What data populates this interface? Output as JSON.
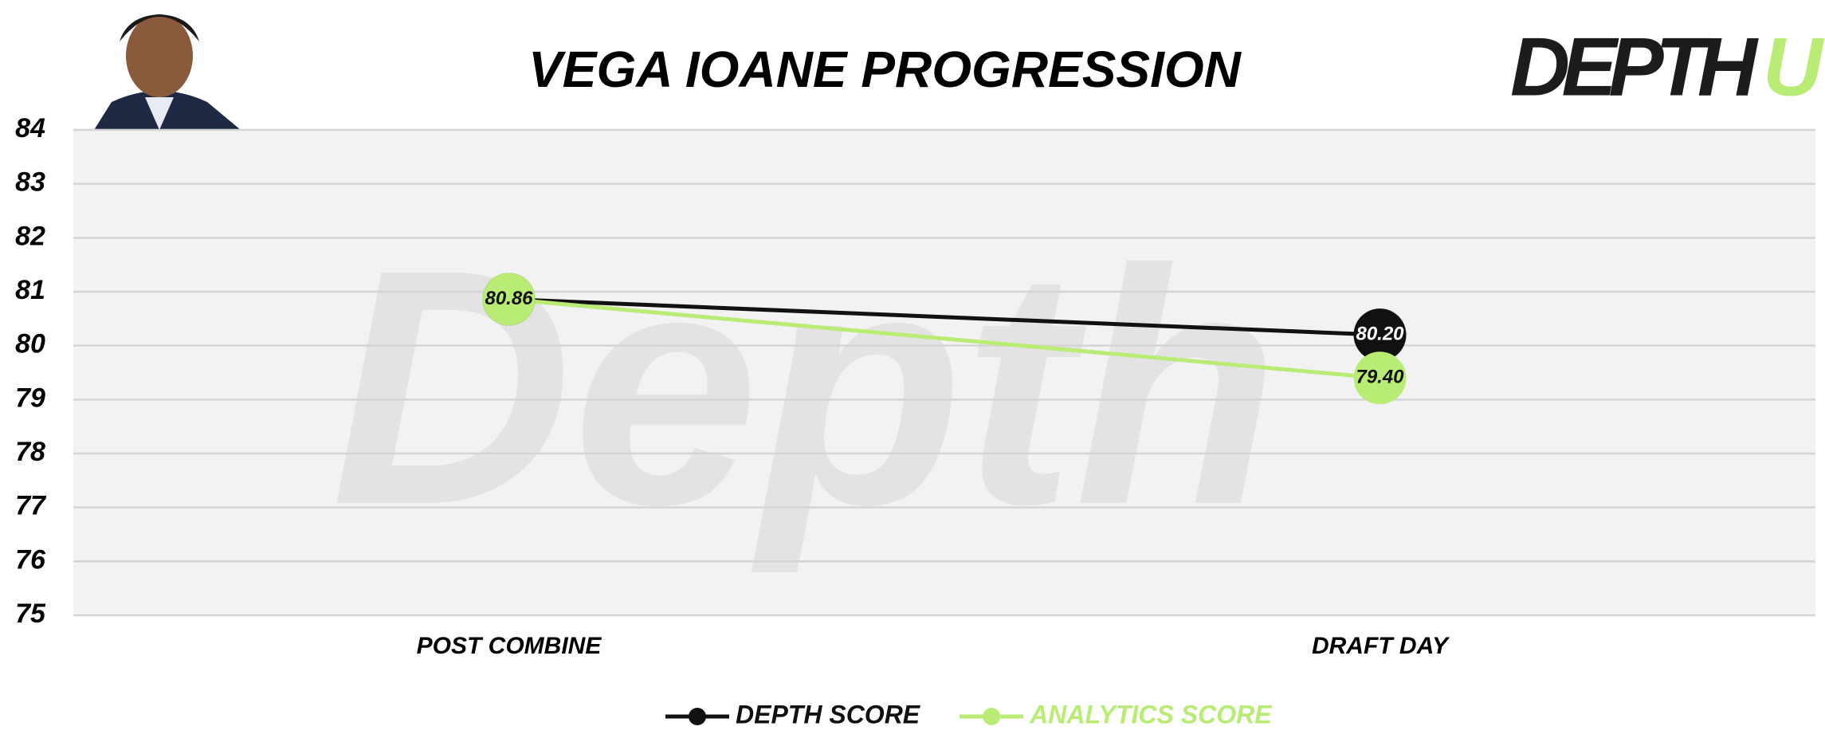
{
  "chart_data": {
    "type": "line",
    "title": "VEGA IOANE PROGRESSION",
    "logo": {
      "text": "DEPTH",
      "accent": "U"
    },
    "watermark": "Depth",
    "categories": [
      "POST COMBINE",
      "DRAFT DAY"
    ],
    "series": [
      {
        "name": "DEPTH SCORE",
        "color": "#111111",
        "values": [
          80.86,
          80.2
        ],
        "value_labels": [
          "80.86",
          "80.20"
        ],
        "label_color": "#ffffff"
      },
      {
        "name": "ANALYTICS SCORE",
        "color": "#b9ec74",
        "values": [
          80.86,
          79.4
        ],
        "value_labels": [
          "80.86",
          "79.40"
        ],
        "label_color": "#111111"
      }
    ],
    "ylim": [
      75,
      84
    ],
    "yticks": [
      75,
      76,
      77,
      78,
      79,
      80,
      81,
      82,
      83,
      84
    ],
    "grid": true,
    "legend": "bottom"
  }
}
